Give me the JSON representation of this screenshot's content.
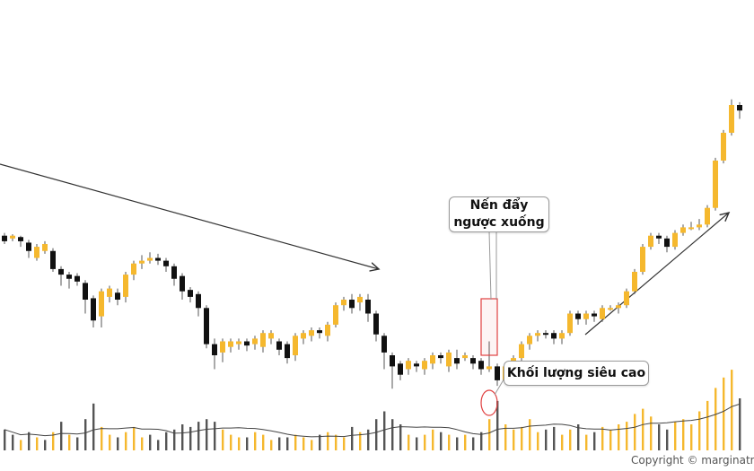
{
  "chart_data": {
    "type": "candlestick",
    "colors": {
      "up": "#f5b82e",
      "down": "#111111",
      "volume_ma": "#444444",
      "trendline": "#333333",
      "highlight": "#e04040"
    },
    "candles": [
      [
        62,
        66,
        68,
        60,
        "d"
      ],
      [
        64,
        66,
        67,
        62,
        "u"
      ],
      [
        62,
        65,
        66,
        58,
        "d"
      ],
      [
        55,
        61,
        63,
        50,
        "d"
      ],
      [
        50,
        58,
        60,
        48,
        "u"
      ],
      [
        55,
        60,
        62,
        53,
        "u"
      ],
      [
        42,
        55,
        57,
        40,
        "d"
      ],
      [
        38,
        42,
        44,
        30,
        "d"
      ],
      [
        35,
        38,
        40,
        28,
        "d"
      ],
      [
        33,
        37,
        39,
        30,
        "d"
      ],
      [
        20,
        32,
        34,
        10,
        "d"
      ],
      [
        5,
        21,
        23,
        0,
        "d"
      ],
      [
        8,
        26,
        28,
        0,
        "u"
      ],
      [
        22,
        28,
        30,
        18,
        "u"
      ],
      [
        20,
        25,
        28,
        16,
        "d"
      ],
      [
        22,
        38,
        40,
        18,
        "u"
      ],
      [
        38,
        46,
        48,
        34,
        "u"
      ],
      [
        46,
        48,
        52,
        42,
        "u"
      ],
      [
        48,
        50,
        54,
        46,
        "u"
      ],
      [
        50,
        48,
        53,
        45,
        "d"
      ],
      [
        44,
        48,
        50,
        40,
        "d"
      ],
      [
        35,
        44,
        46,
        30,
        "d"
      ],
      [
        26,
        37,
        39,
        20,
        "d"
      ],
      [
        22,
        27,
        29,
        18,
        "d"
      ],
      [
        14,
        24,
        26,
        8,
        "d"
      ],
      [
        -12,
        14,
        16,
        -15,
        "d"
      ],
      [
        -20,
        -12,
        -8,
        -30,
        "d"
      ],
      [
        -18,
        -10,
        -8,
        -25,
        "u"
      ],
      [
        -14,
        -10,
        -8,
        -18,
        "u"
      ],
      [
        -12,
        -10,
        -8,
        -16,
        "u"
      ],
      [
        -13,
        -10,
        -8,
        -17,
        "d"
      ],
      [
        -12,
        -8,
        -6,
        -16,
        "u"
      ],
      [
        -14,
        -4,
        -2,
        -18,
        "u"
      ],
      [
        -8,
        -4,
        -2,
        -12,
        "u"
      ],
      [
        -16,
        -10,
        -8,
        -20,
        "d"
      ],
      [
        -22,
        -12,
        -10,
        -26,
        "d"
      ],
      [
        -20,
        -6,
        -4,
        -24,
        "u"
      ],
      [
        -8,
        -4,
        -2,
        -12,
        "u"
      ],
      [
        -6,
        -2,
        0,
        -10,
        "u"
      ],
      [
        -4,
        -2,
        0,
        -8,
        "d"
      ],
      [
        -6,
        2,
        4,
        -10,
        "u"
      ],
      [
        2,
        16,
        18,
        0,
        "u"
      ],
      [
        16,
        20,
        22,
        12,
        "u"
      ],
      [
        14,
        20,
        24,
        10,
        "d"
      ],
      [
        18,
        22,
        24,
        12,
        "u"
      ],
      [
        10,
        20,
        24,
        4,
        "d"
      ],
      [
        -5,
        10,
        12,
        -10,
        "d"
      ],
      [
        -18,
        -6,
        -4,
        -30,
        "d"
      ],
      [
        -28,
        -20,
        -18,
        -44,
        "d"
      ],
      [
        -34,
        -26,
        -24,
        -38,
        "d"
      ],
      [
        -30,
        -24,
        -22,
        -34,
        "u"
      ],
      [
        -28,
        -26,
        -24,
        -32,
        "d"
      ],
      [
        -30,
        -24,
        -22,
        -34,
        "u"
      ],
      [
        -26,
        -20,
        -18,
        -30,
        "u"
      ],
      [
        -22,
        -20,
        -18,
        -26,
        "d"
      ],
      [
        -28,
        -18,
        -16,
        -32,
        "u"
      ],
      [
        -26,
        -22,
        -16,
        -30,
        "d"
      ],
      [
        -22,
        -20,
        -18,
        -24,
        "u"
      ],
      [
        -26,
        -22,
        -20,
        -30,
        "d"
      ],
      [
        -30,
        -24,
        -22,
        -34,
        "d"
      ],
      [
        -30,
        -28,
        -10,
        -32,
        "u"
      ],
      [
        -28,
        -38,
        -26,
        -42,
        "d"
      ],
      [
        -38,
        -28,
        -26,
        -40,
        "u"
      ],
      [
        -28,
        -22,
        -20,
        -32,
        "u"
      ],
      [
        -22,
        -12,
        -10,
        -26,
        "u"
      ],
      [
        -12,
        -6,
        -4,
        -16,
        "u"
      ],
      [
        -6,
        -4,
        -2,
        -10,
        "u"
      ],
      [
        -4,
        -4,
        -2,
        -8,
        "d"
      ],
      [
        -4,
        -8,
        -2,
        -12,
        "d"
      ],
      [
        -8,
        -4,
        -2,
        -12,
        "u"
      ],
      [
        -4,
        10,
        12,
        -6,
        "u"
      ],
      [
        10,
        6,
        12,
        2,
        "d"
      ],
      [
        6,
        10,
        12,
        2,
        "u"
      ],
      [
        10,
        8,
        12,
        4,
        "d"
      ],
      [
        6,
        14,
        16,
        4,
        "u"
      ],
      [
        14,
        14,
        16,
        12,
        "u"
      ],
      [
        14,
        16,
        18,
        10,
        "u"
      ],
      [
        16,
        26,
        28,
        14,
        "u"
      ],
      [
        26,
        40,
        42,
        24,
        "u"
      ],
      [
        40,
        58,
        60,
        38,
        "u"
      ],
      [
        58,
        66,
        68,
        56,
        "u"
      ],
      [
        66,
        64,
        68,
        60,
        "d"
      ],
      [
        58,
        64,
        66,
        54,
        "d"
      ],
      [
        58,
        68,
        70,
        56,
        "u"
      ],
      [
        68,
        72,
        74,
        66,
        "u"
      ],
      [
        72,
        72,
        76,
        70,
        "u"
      ],
      [
        72,
        74,
        78,
        70,
        "u"
      ],
      [
        74,
        86,
        88,
        72,
        "u"
      ],
      [
        86,
        120,
        122,
        84,
        "u"
      ],
      [
        120,
        140,
        142,
        118,
        "u"
      ],
      [
        140,
        160,
        164,
        138,
        "u"
      ],
      [
        160,
        156,
        162,
        150,
        "d"
      ]
    ],
    "volume": [
      [
        16,
        "d"
      ],
      [
        12,
        "d"
      ],
      [
        8,
        "u"
      ],
      [
        14,
        "d"
      ],
      [
        10,
        "u"
      ],
      [
        8,
        "d"
      ],
      [
        14,
        "u"
      ],
      [
        22,
        "d"
      ],
      [
        12,
        "u"
      ],
      [
        10,
        "d"
      ],
      [
        24,
        "d"
      ],
      [
        36,
        "d"
      ],
      [
        18,
        "u"
      ],
      [
        12,
        "u"
      ],
      [
        10,
        "d"
      ],
      [
        14,
        "u"
      ],
      [
        18,
        "u"
      ],
      [
        10,
        "u"
      ],
      [
        12,
        "d"
      ],
      [
        8,
        "d"
      ],
      [
        14,
        "d"
      ],
      [
        16,
        "d"
      ],
      [
        20,
        "d"
      ],
      [
        18,
        "d"
      ],
      [
        22,
        "d"
      ],
      [
        24,
        "d"
      ],
      [
        22,
        "d"
      ],
      [
        16,
        "u"
      ],
      [
        12,
        "u"
      ],
      [
        10,
        "u"
      ],
      [
        10,
        "d"
      ],
      [
        14,
        "u"
      ],
      [
        12,
        "u"
      ],
      [
        8,
        "u"
      ],
      [
        10,
        "d"
      ],
      [
        10,
        "d"
      ],
      [
        12,
        "u"
      ],
      [
        10,
        "u"
      ],
      [
        8,
        "u"
      ],
      [
        12,
        "d"
      ],
      [
        14,
        "u"
      ],
      [
        12,
        "u"
      ],
      [
        10,
        "u"
      ],
      [
        18,
        "d"
      ],
      [
        14,
        "u"
      ],
      [
        16,
        "d"
      ],
      [
        24,
        "d"
      ],
      [
        30,
        "d"
      ],
      [
        24,
        "d"
      ],
      [
        20,
        "d"
      ],
      [
        12,
        "u"
      ],
      [
        10,
        "d"
      ],
      [
        12,
        "u"
      ],
      [
        16,
        "u"
      ],
      [
        14,
        "d"
      ],
      [
        12,
        "u"
      ],
      [
        10,
        "d"
      ],
      [
        12,
        "u"
      ],
      [
        10,
        "d"
      ],
      [
        14,
        "d"
      ],
      [
        24,
        "u"
      ],
      [
        38,
        "d"
      ],
      [
        20,
        "u"
      ],
      [
        16,
        "u"
      ],
      [
        18,
        "u"
      ],
      [
        24,
        "u"
      ],
      [
        14,
        "u"
      ],
      [
        16,
        "d"
      ],
      [
        18,
        "d"
      ],
      [
        12,
        "u"
      ],
      [
        16,
        "u"
      ],
      [
        20,
        "d"
      ],
      [
        12,
        "u"
      ],
      [
        14,
        "d"
      ],
      [
        18,
        "u"
      ],
      [
        16,
        "u"
      ],
      [
        20,
        "u"
      ],
      [
        22,
        "u"
      ],
      [
        28,
        "u"
      ],
      [
        32,
        "u"
      ],
      [
        26,
        "u"
      ],
      [
        20,
        "d"
      ],
      [
        16,
        "d"
      ],
      [
        22,
        "u"
      ],
      [
        24,
        "u"
      ],
      [
        20,
        "u"
      ],
      [
        30,
        "u"
      ],
      [
        38,
        "u"
      ],
      [
        48,
        "u"
      ],
      [
        56,
        "u"
      ],
      [
        62,
        "u"
      ],
      [
        40,
        "d"
      ]
    ]
  },
  "annotations": {
    "reversal_label_line1": "Nến đẩy",
    "reversal_label_line2": "ngược xuống",
    "volume_label": "Khối lượng siêu cao"
  },
  "footer": {
    "copyright": "Copyright © marginatm"
  }
}
